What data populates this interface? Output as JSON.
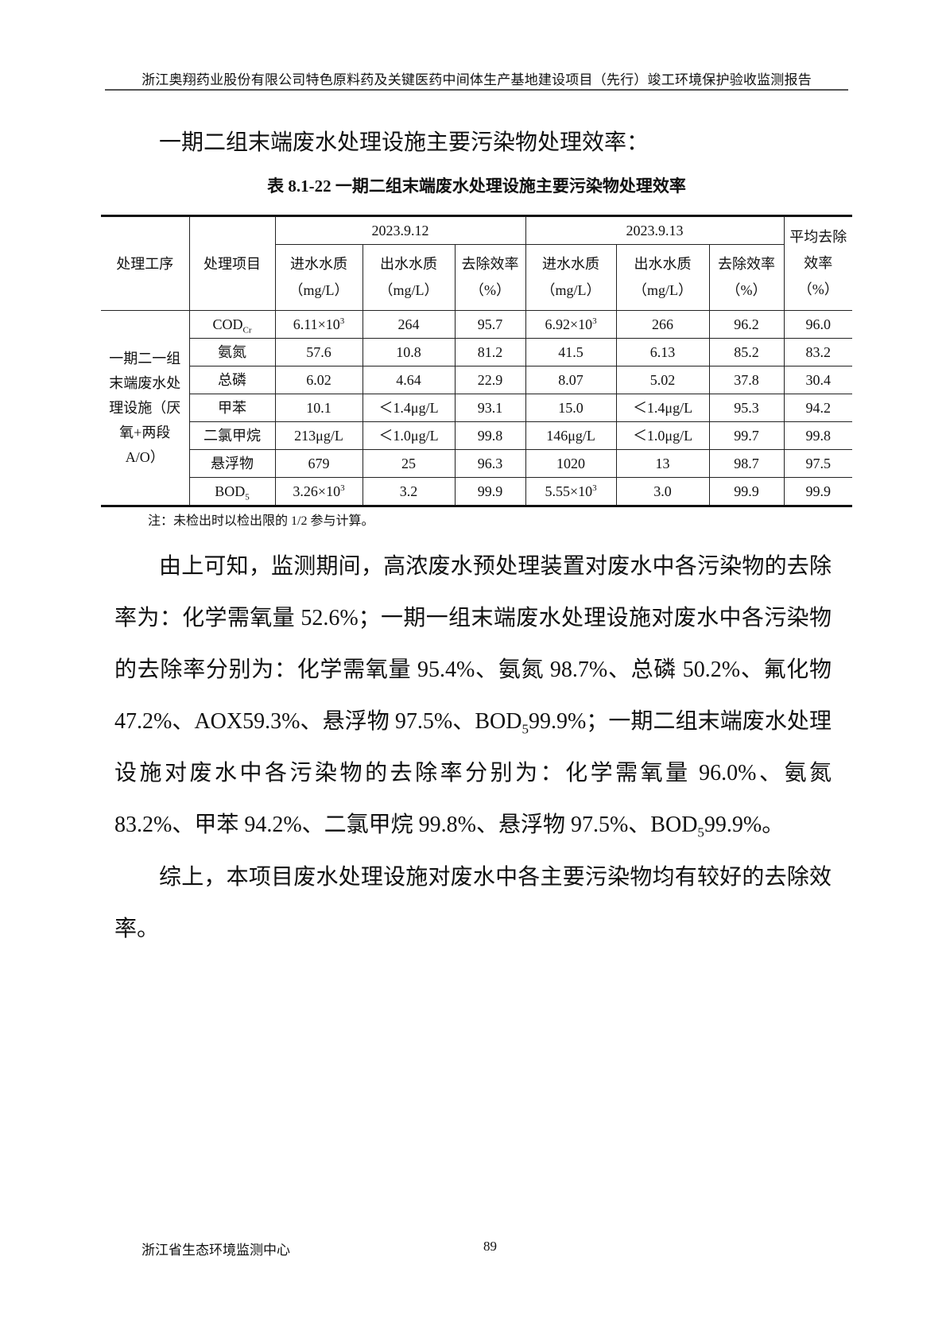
{
  "header": {
    "running_title": "浙江奥翔药业股份有限公司特色原料药及关键医药中间体生产基地建设项目（先行）竣工环境保护验收监测报告"
  },
  "section_heading": "一期二组末端废水处理设施主要污染物处理效率：",
  "table": {
    "caption": "表 8.1-22  一期二组末端废水处理设施主要污染物处理效率",
    "col_process": "处理工序",
    "col_item": "处理项目",
    "date1": "2023.9.12",
    "date2": "2023.9.13",
    "sub_headers": [
      "进水水质（mg/L）",
      "出水水质（mg/L）",
      "去除效率（%）",
      "进水水质（mg/L）",
      "出水水质（mg/L）",
      "去除效率（%）"
    ],
    "col_avg": "平均去除效率（%）",
    "process_name": "一期二一组末端废水处理设施（厌氧+两段A/O）",
    "rows": [
      {
        "item": [
          "COD",
          "",
          "Cr"
        ],
        "in1": [
          "6.11×10",
          "3",
          ""
        ],
        "out1": "264",
        "eff1": "95.7",
        "in2": [
          "6.92×10",
          "3",
          ""
        ],
        "out2": "266",
        "eff2": "96.2",
        "avg": "96.0"
      },
      {
        "item": [
          "氨氮",
          "",
          ""
        ],
        "in1": [
          "57.6",
          "",
          ""
        ],
        "out1": "10.8",
        "eff1": "81.2",
        "in2": [
          "41.5",
          "",
          ""
        ],
        "out2": "6.13",
        "eff2": "85.2",
        "avg": "83.2"
      },
      {
        "item": [
          "总磷",
          "",
          ""
        ],
        "in1": [
          "6.02",
          "",
          ""
        ],
        "out1": "4.64",
        "eff1": "22.9",
        "in2": [
          "8.07",
          "",
          ""
        ],
        "out2": "5.02",
        "eff2": "37.8",
        "avg": "30.4"
      },
      {
        "item": [
          "甲苯",
          "",
          ""
        ],
        "in1": [
          "10.1",
          "",
          ""
        ],
        "out1": "＜1.4μg/L",
        "eff1": "93.1",
        "in2": [
          "15.0",
          "",
          ""
        ],
        "out2": "＜1.4μg/L",
        "eff2": "95.3",
        "avg": "94.2"
      },
      {
        "item": [
          "二氯甲烷",
          "",
          ""
        ],
        "in1": [
          "213μg/L",
          "",
          ""
        ],
        "out1": "＜1.0μg/L",
        "eff1": "99.8",
        "in2": [
          "146μg/L",
          "",
          ""
        ],
        "out2": "＜1.0μg/L",
        "eff2": "99.7",
        "avg": "99.8"
      },
      {
        "item": [
          "悬浮物",
          "",
          ""
        ],
        "in1": [
          "679",
          "",
          ""
        ],
        "out1": "25",
        "eff1": "96.3",
        "in2": [
          "1020",
          "",
          ""
        ],
        "out2": "13",
        "eff2": "98.7",
        "avg": "97.5"
      },
      {
        "item": [
          "BOD",
          "",
          "5"
        ],
        "in1": [
          "3.26×10",
          "3",
          ""
        ],
        "out1": "3.2",
        "eff1": "99.9",
        "in2": [
          "5.55×10",
          "3",
          ""
        ],
        "out2": "3.0",
        "eff2": "99.9",
        "avg": "99.9"
      }
    ]
  },
  "note": "注：未检出时以检出限的 1/2 参与计算。",
  "paragraphs": [
    [
      {
        "t": "由上可知，监测期间，高浓废水预处理装置对废水中各污染物的去除率为：化学需氧量 52.6%；一期一组末端废水处理设施对废水中各污染物的去除率分别为：化学需氧量 95.4%、氨氮 98.7%、总磷 50.2%、氟化物 47.2%、AOX59.3%、悬浮物 97.5%、BOD"
      },
      {
        "sub": "5"
      },
      {
        "t": "99.9%；一期二组末端废水处理设施对废水中各污染物的去除率分别为：化学需氧量 96.0%、氨氮 83.2%、甲苯 94.2%、二氯甲烷 99.8%、悬浮物 97.5%、BOD"
      },
      {
        "sub": "5"
      },
      {
        "t": "99.9%。"
      }
    ],
    [
      {
        "t": "综上，本项目废水处理设施对废水中各主要污染物均有较好的去除效率。"
      }
    ]
  ],
  "footer": {
    "org": "浙江省生态环境监测中心",
    "page_number": "89"
  }
}
